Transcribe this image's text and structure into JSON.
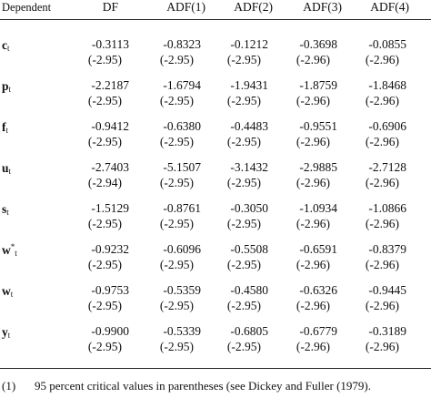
{
  "table": {
    "columns": [
      "Dependent",
      "DF",
      "ADF(1)",
      "ADF(2)",
      "ADF(3)",
      "ADF(4)"
    ],
    "rows": [
      {
        "var": "c",
        "sub": "t",
        "sup": "",
        "stats": [
          "-0.3113",
          "-0.8323",
          "-0.1212",
          "-0.3698",
          "-0.0855"
        ],
        "cvs": [
          "(-2.95)",
          "(-2.95)",
          "(-2.95)",
          "(-2.96)",
          "(-2.96)"
        ]
      },
      {
        "var": "p",
        "sub": "t",
        "sup": "",
        "stats": [
          "-2.2187",
          "-1.6794",
          "-1.9431",
          "-1.8759",
          "-1.8468"
        ],
        "cvs": [
          "(-2.95)",
          "(-2.95)",
          "(-2.95)",
          "(-2.96)",
          "(-2.96)"
        ]
      },
      {
        "var": "f",
        "sub": "t",
        "sup": "",
        "stats": [
          "-0.9412",
          "-0.6380",
          "-0.4483",
          "-0.9551",
          "-0.6906"
        ],
        "cvs": [
          "(-2.95)",
          "(-2.95)",
          "(-2.95)",
          "(-2.96)",
          "(-2.96)"
        ]
      },
      {
        "var": "u",
        "sub": "t",
        "sup": "",
        "stats": [
          "-2.7403",
          "-5.1507",
          "-3.1432",
          "-2.9885",
          "-2.7128"
        ],
        "cvs": [
          "(-2.94)",
          "(-2.95)",
          "(-2.95)",
          "(-2.96)",
          "(-2.96)"
        ]
      },
      {
        "var": "s",
        "sub": "t",
        "sup": "",
        "stats": [
          "-1.5129",
          "-0.8761",
          "-0.3050",
          "-1.0934",
          "-1.0866"
        ],
        "cvs": [
          "(-2.95)",
          "(-2.95)",
          "(-2.95)",
          "(-2.96)",
          "(-2.96)"
        ]
      },
      {
        "var": "w",
        "sub": "t",
        "sup": "*",
        "stats": [
          "-0.9232",
          "-0.6096",
          "-0.5508",
          "-0.6591",
          "-0.8379"
        ],
        "cvs": [
          "(-2.95)",
          "(-2.95)",
          "(-2.95)",
          "(-2.96)",
          "(-2.96)"
        ]
      },
      {
        "var": "w",
        "sub": "t",
        "sup": "",
        "stats": [
          "-0.9753",
          "-0.5359",
          "-0.4580",
          "-0.6326",
          "-0.9445"
        ],
        "cvs": [
          "(-2.95)",
          "(-2.95)",
          "(-2.95)",
          "(-2.96)",
          "(-2.96)"
        ]
      },
      {
        "var": "y",
        "sub": "t",
        "sup": "",
        "stats": [
          "-0.9900",
          "-0.5339",
          "-0.6805",
          "-0.6779",
          "-0.3189"
        ],
        "cvs": [
          "(-2.95)",
          "(-2.95)",
          "(-2.95)",
          "(-2.96)",
          "(-2.96)"
        ]
      }
    ]
  },
  "footnote": {
    "label": "(1)",
    "text": "95 percent critical values in parentheses (see Dickey and Fuller (1979)."
  }
}
